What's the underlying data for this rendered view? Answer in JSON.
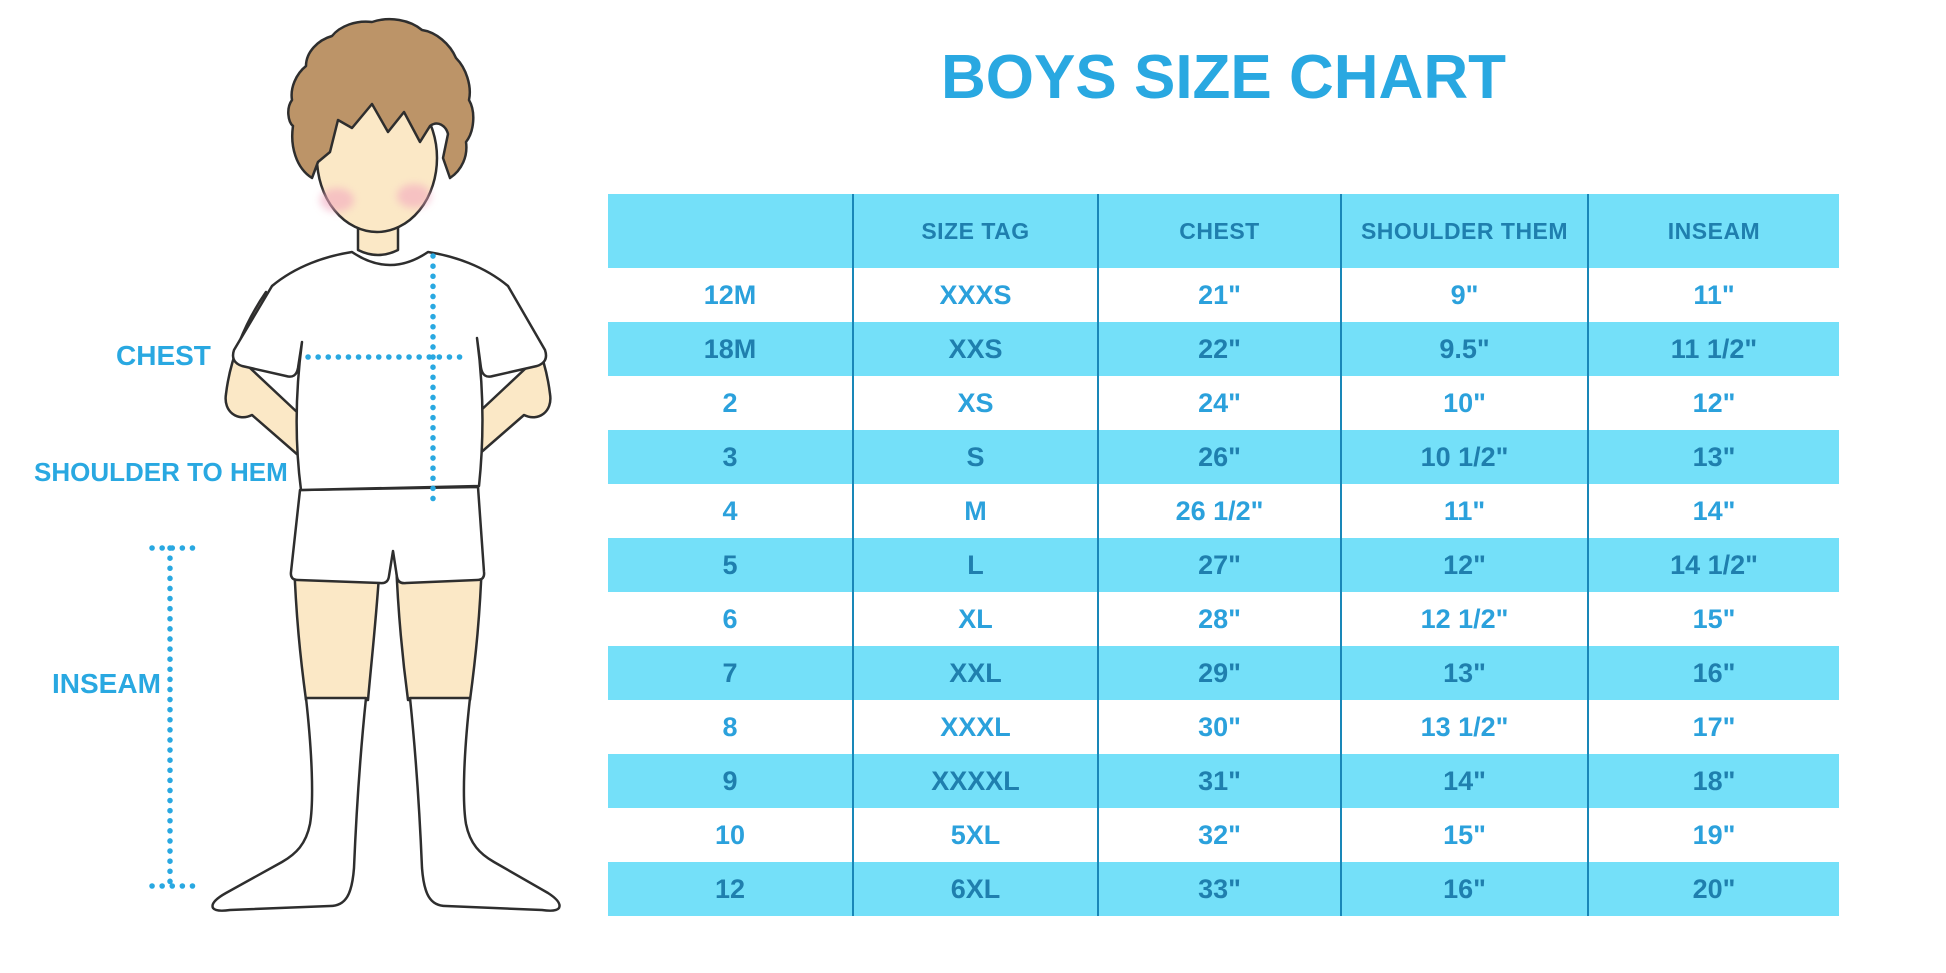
{
  "title": "BOYS SIZE CHART",
  "illustration": {
    "figure": "boy-front-standing",
    "labels": {
      "chest": "CHEST",
      "shoulder_to_hem": "SHOULDER TO HEM",
      "inseam": "INSEAM"
    }
  },
  "chart_data": {
    "type": "table",
    "title": "BOYS SIZE CHART",
    "columns": [
      "",
      "SIZE TAG",
      "CHEST",
      "SHOULDER THEM",
      "INSEAM"
    ],
    "rows": [
      [
        "12M",
        "XXXS",
        "21\"",
        "9\"",
        "11\""
      ],
      [
        "18M",
        "XXS",
        "22\"",
        "9.5\"",
        "11 1/2\""
      ],
      [
        "2",
        "XS",
        "24\"",
        "10\"",
        "12\""
      ],
      [
        "3",
        "S",
        "26\"",
        "10 1/2\"",
        "13\""
      ],
      [
        "4",
        "M",
        "26 1/2\"",
        "11\"",
        "14\""
      ],
      [
        "5",
        "L",
        "27\"",
        "12\"",
        "14 1/2\""
      ],
      [
        "6",
        "XL",
        "28\"",
        "12 1/2\"",
        "15\""
      ],
      [
        "7",
        "XXL",
        "29\"",
        "13\"",
        "16\""
      ],
      [
        "8",
        "XXXL",
        "30\"",
        "13 1/2\"",
        "17\""
      ],
      [
        "9",
        "XXXXL",
        "31\"",
        "14\"",
        "18\""
      ],
      [
        "10",
        "5XL",
        "32\"",
        "15\"",
        "19\""
      ],
      [
        "12",
        "6XL",
        "33\"",
        "16\"",
        "20\""
      ]
    ],
    "layout": {
      "striping": "header and odd data rows light blue, even data rows white",
      "grid": "vertical dividers only"
    }
  },
  "colors": {
    "accent_blue": "#29A8E1",
    "row_blue": "#74E0F9",
    "text_on_blue": "#1F7FAE",
    "text_on_white": "#2BA1DC",
    "divider": "#1987B8"
  }
}
